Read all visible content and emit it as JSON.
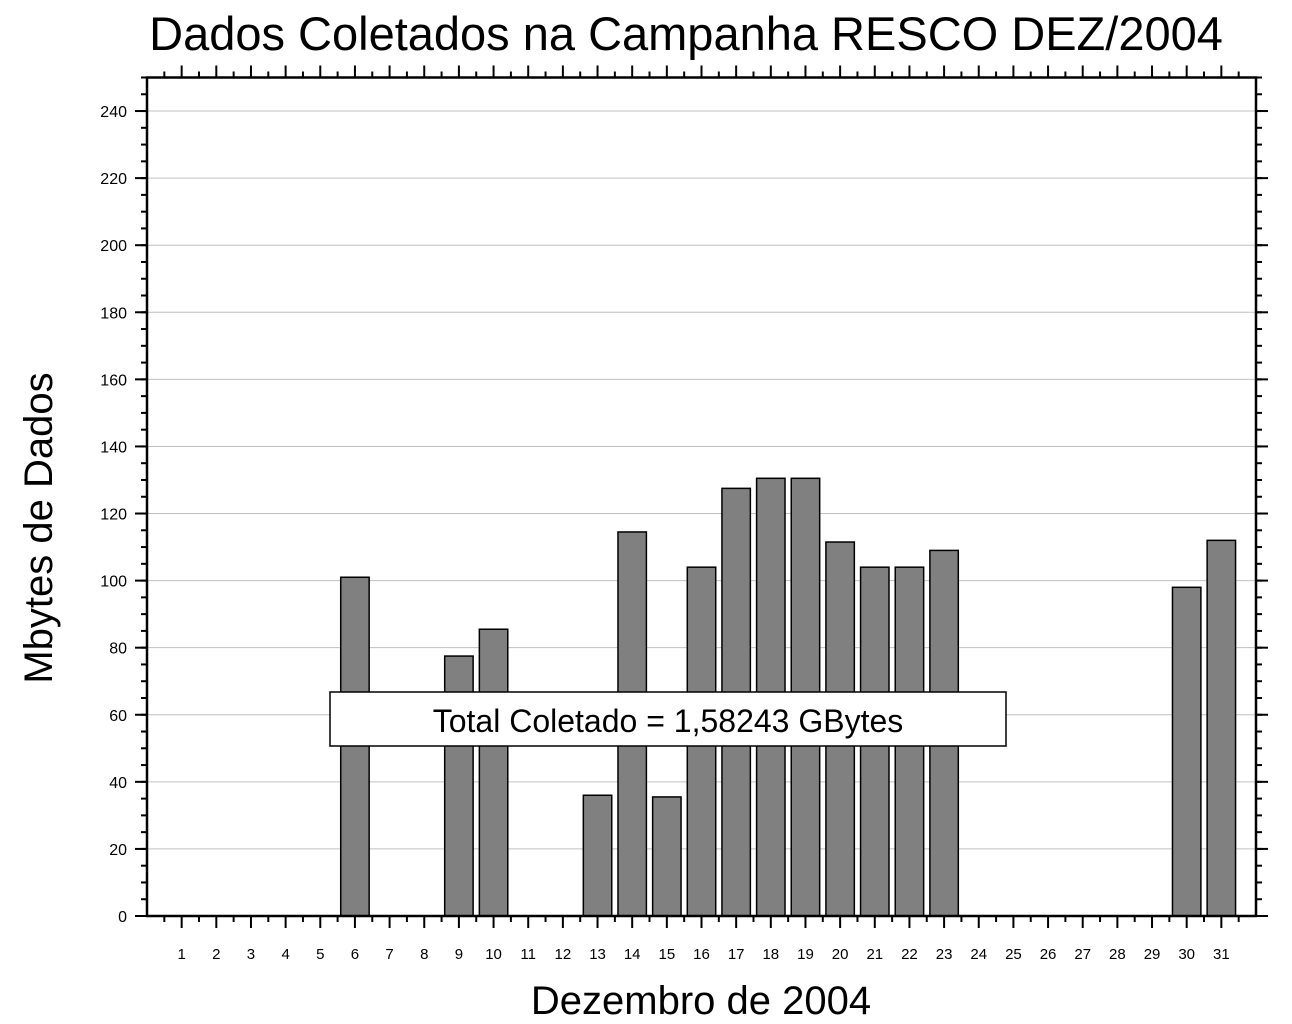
{
  "chart_data": {
    "type": "bar",
    "title": "Dados Coletados na Campanha RESCO DEZ/2004",
    "x_label": "Dezembro de 2004",
    "y_label": "Mbytes de Dados",
    "annotation": "Total Coletado = 1,58243 GBytes",
    "categories": [
      "1",
      "2",
      "3",
      "4",
      "5",
      "6",
      "7",
      "8",
      "9",
      "10",
      "11",
      "12",
      "13",
      "14",
      "15",
      "16",
      "17",
      "18",
      "19",
      "20",
      "21",
      "22",
      "23",
      "24",
      "25",
      "26",
      "27",
      "28",
      "29",
      "30",
      "31"
    ],
    "values": [
      0,
      0,
      0,
      0,
      0,
      101,
      0,
      0,
      77.5,
      85.5,
      0,
      0,
      36,
      114.5,
      35.5,
      104,
      127.5,
      130.5,
      130.5,
      111.5,
      104,
      104,
      109,
      0,
      0,
      0,
      0,
      0,
      0,
      98,
      112
    ],
    "color": "#808080",
    "ylim": [
      0,
      250
    ],
    "yticks": [
      0,
      20,
      40,
      60,
      80,
      100,
      120,
      140,
      160,
      180,
      200,
      220,
      240
    ],
    "grid": true
  }
}
